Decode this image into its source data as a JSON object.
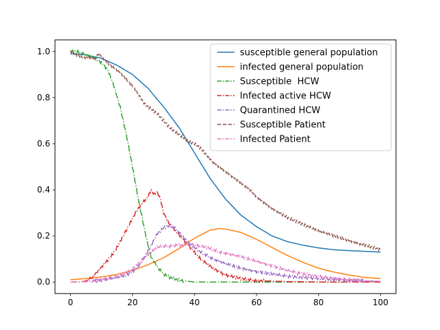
{
  "chart_data": {
    "type": "line",
    "title": "",
    "xlabel": "",
    "ylabel": "",
    "xlim": [
      -5,
      105
    ],
    "ylim": [
      -0.05,
      1.05
    ],
    "x_ticks": [
      0,
      20,
      40,
      60,
      80,
      100
    ],
    "y_ticks": [
      0.0,
      0.2,
      0.4,
      0.6,
      0.8,
      1.0
    ],
    "x_tick_labels": [
      "0",
      "20",
      "40",
      "60",
      "80",
      "100"
    ],
    "y_tick_labels": [
      "0.0",
      "0.2",
      "0.4",
      "0.6",
      "0.8",
      "1.0"
    ],
    "grid": false,
    "legend_position": "top-right",
    "series": [
      {
        "name": "susceptible general population",
        "color": "#1f77b4",
        "style": "solid",
        "x": [
          0,
          5,
          10,
          15,
          20,
          25,
          30,
          35,
          40,
          45,
          50,
          55,
          60,
          65,
          70,
          75,
          80,
          85,
          90,
          95,
          100
        ],
        "y": [
          0.99,
          0.985,
          0.97,
          0.94,
          0.9,
          0.84,
          0.76,
          0.67,
          0.56,
          0.45,
          0.36,
          0.29,
          0.24,
          0.2,
          0.175,
          0.16,
          0.148,
          0.14,
          0.136,
          0.133,
          0.13
        ]
      },
      {
        "name": "infected general population",
        "color": "#ff7f0e",
        "style": "solid",
        "x": [
          0,
          5,
          10,
          15,
          20,
          25,
          30,
          35,
          40,
          45,
          48,
          50,
          55,
          60,
          65,
          70,
          75,
          80,
          85,
          90,
          95,
          100
        ],
        "y": [
          0.01,
          0.015,
          0.022,
          0.033,
          0.05,
          0.075,
          0.105,
          0.145,
          0.19,
          0.225,
          0.232,
          0.23,
          0.215,
          0.185,
          0.15,
          0.115,
          0.085,
          0.06,
          0.043,
          0.03,
          0.02,
          0.015
        ]
      },
      {
        "name": "Susceptible  HCW",
        "color": "#2ca02c",
        "style": "dashdot",
        "x": [
          0,
          2,
          4,
          6,
          8,
          10,
          12,
          14,
          16,
          18,
          20,
          22,
          24,
          25,
          26,
          28,
          30,
          32,
          34,
          36,
          38,
          40,
          50,
          60,
          70,
          80,
          90,
          100
        ],
        "y": [
          1.0,
          1.0,
          0.99,
          0.98,
          0.97,
          0.95,
          0.92,
          0.85,
          0.76,
          0.64,
          0.5,
          0.35,
          0.22,
          0.16,
          0.11,
          0.065,
          0.035,
          0.02,
          0.012,
          0.006,
          0.003,
          0.0,
          0.0,
          0.0,
          0.0,
          0.0,
          0.0,
          0.0
        ]
      },
      {
        "name": "Infected active HCW",
        "color": "#d62728",
        "style": "dashdot",
        "x": [
          0,
          3,
          5,
          7,
          9,
          11,
          13,
          15,
          17,
          19,
          21,
          23,
          25,
          26,
          27,
          28,
          29,
          30,
          32,
          34,
          36,
          38,
          40,
          42,
          44,
          46,
          48,
          50,
          55,
          60,
          70,
          80,
          90,
          100
        ],
        "y": [
          0.0,
          0.0,
          0.005,
          0.02,
          0.05,
          0.08,
          0.11,
          0.15,
          0.2,
          0.25,
          0.3,
          0.34,
          0.37,
          0.4,
          0.38,
          0.39,
          0.36,
          0.3,
          0.25,
          0.22,
          0.19,
          0.16,
          0.13,
          0.1,
          0.08,
          0.06,
          0.045,
          0.03,
          0.015,
          0.006,
          0.002,
          0.0,
          0.0,
          0.0
        ]
      },
      {
        "name": "Quarantined HCW",
        "color": "#9467bd",
        "style": "dashdot",
        "x": [
          0,
          5,
          10,
          15,
          18,
          20,
          22,
          24,
          26,
          28,
          30,
          32,
          33,
          34,
          36,
          38,
          40,
          42,
          44,
          46,
          48,
          50,
          55,
          60,
          65,
          70,
          75,
          80,
          85,
          90,
          95,
          100
        ],
        "y": [
          0.0,
          0.002,
          0.008,
          0.02,
          0.03,
          0.045,
          0.07,
          0.11,
          0.16,
          0.21,
          0.235,
          0.245,
          0.24,
          0.23,
          0.2,
          0.17,
          0.15,
          0.13,
          0.115,
          0.1,
          0.09,
          0.08,
          0.06,
          0.045,
          0.035,
          0.025,
          0.02,
          0.015,
          0.01,
          0.008,
          0.005,
          0.003
        ]
      },
      {
        "name": "Susceptible Patient",
        "color": "#8c564b",
        "style": "dashed",
        "x": [
          0,
          2,
          4,
          6,
          8,
          9,
          10,
          12,
          14,
          16,
          18,
          20,
          22,
          24,
          26,
          28,
          30,
          32,
          34,
          36,
          38,
          40,
          42,
          44,
          46,
          48,
          50,
          52,
          54,
          56,
          58,
          60,
          65,
          70,
          75,
          80,
          85,
          90,
          95,
          100
        ],
        "y": [
          1.0,
          0.985,
          0.975,
          0.975,
          0.97,
          0.99,
          0.98,
          0.95,
          0.93,
          0.91,
          0.88,
          0.85,
          0.81,
          0.77,
          0.75,
          0.73,
          0.7,
          0.67,
          0.65,
          0.63,
          0.61,
          0.6,
          0.58,
          0.55,
          0.52,
          0.5,
          0.48,
          0.46,
          0.44,
          0.42,
          0.4,
          0.37,
          0.32,
          0.28,
          0.25,
          0.22,
          0.2,
          0.18,
          0.16,
          0.14
        ]
      },
      {
        "name": "Infected Patient",
        "color": "#e377c2",
        "style": "dashdot",
        "x": [
          0,
          5,
          10,
          15,
          18,
          20,
          22,
          24,
          26,
          28,
          30,
          32,
          34,
          36,
          38,
          40,
          42,
          44,
          46,
          48,
          50,
          55,
          60,
          65,
          70,
          75,
          80,
          85,
          90,
          95,
          100
        ],
        "y": [
          0.0,
          0.002,
          0.01,
          0.025,
          0.04,
          0.055,
          0.08,
          0.11,
          0.13,
          0.15,
          0.155,
          0.155,
          0.16,
          0.16,
          0.165,
          0.16,
          0.155,
          0.15,
          0.14,
          0.13,
          0.125,
          0.11,
          0.09,
          0.07,
          0.05,
          0.035,
          0.025,
          0.015,
          0.01,
          0.005,
          0.003
        ]
      }
    ]
  }
}
